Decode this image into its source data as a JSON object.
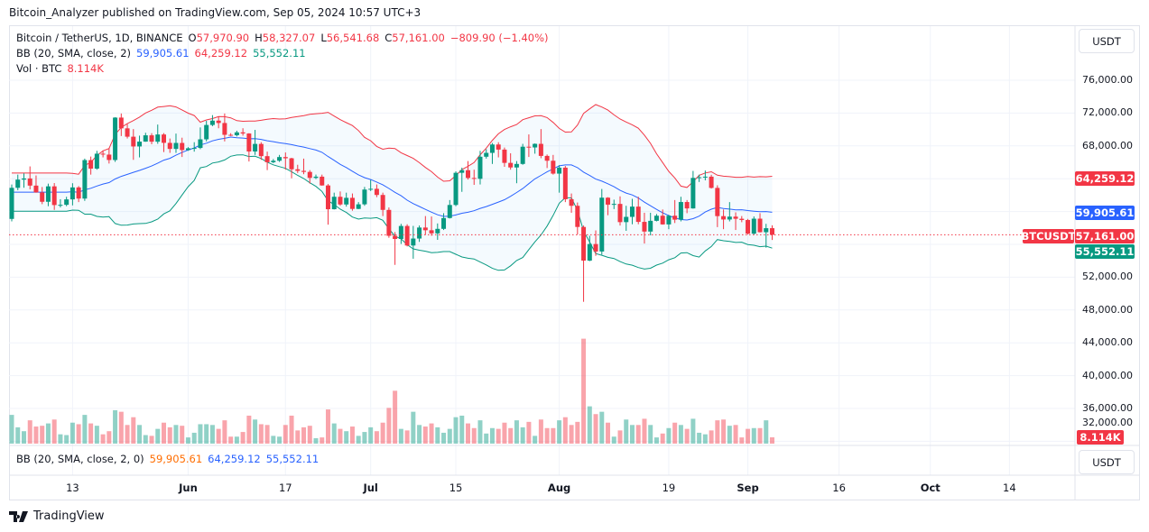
{
  "publisher_line": "Bitcoin_Analyzer published on TradingView.com, Sep 05, 2024 10:57 UTC+3",
  "legend": {
    "symbol": "Bitcoin / TetherUS, 1D, BINANCE",
    "o_label": "O",
    "o": "57,970.90",
    "h_label": "H",
    "h": "58,327.07",
    "l_label": "L",
    "l": "56,541.68",
    "c_label": "C",
    "c": "57,161.00",
    "change": "−809.90 (−1.40%)",
    "bb_label": "BB (20, SMA, close, 2)",
    "bb_basis": "59,905.61",
    "bb_upper": "64,259.12",
    "bb_lower": "55,552.11",
    "vol_label": "Vol · BTC",
    "vol": "8.114K"
  },
  "lower_pane": {
    "label": "BB (20, SMA, close, 2, 0)",
    "v1": "59,905.61",
    "v2": "64,259.12",
    "v3": "55,552.11",
    "unit": "USDT"
  },
  "price_axis": {
    "unit": "USDT",
    "symbol_tag": "BTCUSDT",
    "labels": {
      "upper": "64,259.12",
      "basis": "59,905.61",
      "last": "57,161.00",
      "lower": "55,552.11",
      "volume": "8.114K"
    }
  },
  "footer_logo": "TradingView",
  "chart_data": {
    "type": "candlestick",
    "symbol": "BTCUSDT",
    "timeframe": "1D",
    "ylim": [
      30000,
      80000
    ],
    "y_ticks": [
      "76,000.00",
      "72,000.00",
      "68,000.00",
      "52,000.00",
      "48,000.00",
      "44,000.00",
      "40,000.00",
      "36,000.00",
      "32,000.00"
    ],
    "y_tick_values": [
      76000,
      72000,
      68000,
      52000,
      48000,
      44000,
      40000,
      36000,
      32000
    ],
    "x_ticks": [
      {
        "label": "13",
        "date": "2024-05-13",
        "month": false
      },
      {
        "label": "Jun",
        "date": "2024-06-01",
        "month": true
      },
      {
        "label": "17",
        "date": "2024-06-17",
        "month": false
      },
      {
        "label": "Jul",
        "date": "2024-07-01",
        "month": true
      },
      {
        "label": "15",
        "date": "2024-07-15",
        "month": false
      },
      {
        "label": "Aug",
        "date": "2024-08-01",
        "month": true
      },
      {
        "label": "19",
        "date": "2024-08-19",
        "month": false
      },
      {
        "label": "Sep",
        "date": "2024-09-01",
        "month": true
      },
      {
        "label": "16",
        "date": "2024-09-16",
        "month": false
      },
      {
        "label": "Oct",
        "date": "2024-10-01",
        "month": true
      },
      {
        "label": "14",
        "date": "2024-10-14",
        "month": false
      }
    ],
    "indicator": {
      "name": "BB",
      "length": 20,
      "mult": 2,
      "source": "close"
    },
    "last_price": 57161.0,
    "bb_last": {
      "basis": 59905.61,
      "upper": 64259.12,
      "lower": 55552.11
    },
    "colors": {
      "up": "#089981",
      "down": "#F23645",
      "basis": "#2962FF",
      "upper": "#F23645",
      "lower": "#089981"
    },
    "columns": [
      "date",
      "open",
      "high",
      "low",
      "close",
      "volume_k_btc"
    ],
    "candles": [
      [
        "2024-05-03",
        59100,
        63300,
        58800,
        62890,
        37
      ],
      [
        "2024-05-04",
        62890,
        64500,
        62600,
        63890,
        21
      ],
      [
        "2024-05-05",
        63890,
        64650,
        62900,
        64030,
        16
      ],
      [
        "2024-05-06",
        64030,
        65500,
        62700,
        63160,
        30
      ],
      [
        "2024-05-07",
        63160,
        64400,
        62300,
        62330,
        22
      ],
      [
        "2024-05-08",
        62330,
        62990,
        60900,
        61190,
        23
      ],
      [
        "2024-05-09",
        61190,
        63400,
        60650,
        63070,
        26
      ],
      [
        "2024-05-10",
        63070,
        63470,
        60200,
        60790,
        31
      ],
      [
        "2024-05-11",
        60790,
        61500,
        60500,
        60820,
        12
      ],
      [
        "2024-05-12",
        60820,
        61800,
        60650,
        61480,
        11
      ],
      [
        "2024-05-13",
        61480,
        63450,
        60750,
        62940,
        27
      ],
      [
        "2024-05-14",
        62940,
        63100,
        61150,
        61580,
        25
      ],
      [
        "2024-05-15",
        61580,
        66450,
        61300,
        66270,
        37
      ],
      [
        "2024-05-16",
        66270,
        66700,
        64500,
        65230,
        26
      ],
      [
        "2024-05-17",
        65230,
        67400,
        65100,
        67050,
        23
      ],
      [
        "2024-05-18",
        67050,
        67450,
        66600,
        66940,
        12
      ],
      [
        "2024-05-19",
        66940,
        67700,
        65850,
        66280,
        16
      ],
      [
        "2024-05-20",
        66280,
        71500,
        66050,
        71450,
        43
      ],
      [
        "2024-05-21",
        71450,
        71950,
        69200,
        70140,
        41
      ],
      [
        "2024-05-22",
        70140,
        70650,
        68900,
        69120,
        24
      ],
      [
        "2024-05-23",
        69120,
        70050,
        66300,
        67930,
        34
      ],
      [
        "2024-05-24",
        67930,
        69250,
        66600,
        68520,
        24
      ],
      [
        "2024-05-25",
        68520,
        69600,
        68500,
        69290,
        11
      ],
      [
        "2024-05-26",
        69290,
        69550,
        68200,
        68510,
        10
      ],
      [
        "2024-05-27",
        68510,
        70600,
        68250,
        69390,
        19
      ],
      [
        "2024-05-28",
        69390,
        69560,
        67250,
        68370,
        27
      ],
      [
        "2024-05-29",
        68370,
        68900,
        67150,
        67630,
        21
      ],
      [
        "2024-05-30",
        67630,
        69500,
        67150,
        68360,
        24
      ],
      [
        "2024-05-31",
        68360,
        69000,
        66650,
        67490,
        23
      ],
      [
        "2024-06-01",
        67490,
        67850,
        67400,
        67710,
        8
      ],
      [
        "2024-06-02",
        67710,
        68450,
        67300,
        67750,
        14
      ],
      [
        "2024-06-03",
        67750,
        70250,
        67600,
        68800,
        25
      ],
      [
        "2024-06-04",
        68800,
        71050,
        68550,
        70550,
        25
      ],
      [
        "2024-06-05",
        70550,
        71750,
        70400,
        71080,
        24
      ],
      [
        "2024-06-06",
        71080,
        71600,
        70150,
        70790,
        19
      ],
      [
        "2024-06-07",
        70790,
        71950,
        68550,
        69350,
        30
      ],
      [
        "2024-06-08",
        69350,
        69550,
        69200,
        69300,
        9
      ],
      [
        "2024-06-09",
        69300,
        69850,
        69150,
        69650,
        9
      ],
      [
        "2024-06-10",
        69650,
        70150,
        69250,
        69510,
        15
      ],
      [
        "2024-06-11",
        69510,
        69550,
        66100,
        67320,
        36
      ],
      [
        "2024-06-12",
        67320,
        69950,
        66900,
        68240,
        31
      ],
      [
        "2024-06-13",
        68240,
        68450,
        66300,
        66750,
        25
      ],
      [
        "2024-06-14",
        66750,
        67300,
        65050,
        66010,
        24
      ],
      [
        "2024-06-15",
        66010,
        66400,
        65900,
        66190,
        10
      ],
      [
        "2024-06-16",
        66190,
        66900,
        66050,
        66640,
        9
      ],
      [
        "2024-06-17",
        66640,
        67200,
        65100,
        66490,
        24
      ],
      [
        "2024-06-18",
        66490,
        66550,
        64050,
        65150,
        36
      ],
      [
        "2024-06-19",
        65150,
        65700,
        64700,
        64960,
        17
      ],
      [
        "2024-06-20",
        64960,
        66450,
        64550,
        64830,
        21
      ],
      [
        "2024-06-21",
        64830,
        65050,
        63400,
        64100,
        23
      ],
      [
        "2024-06-22",
        64100,
        64500,
        63950,
        64250,
        7
      ],
      [
        "2024-06-23",
        64250,
        64500,
        63150,
        63180,
        8
      ],
      [
        "2024-06-24",
        63180,
        63350,
        58400,
        60280,
        44
      ],
      [
        "2024-06-25",
        60280,
        62300,
        60250,
        61800,
        26
      ],
      [
        "2024-06-26",
        61800,
        62450,
        60700,
        60860,
        19
      ],
      [
        "2024-06-27",
        60860,
        62300,
        60600,
        61670,
        16
      ],
      [
        "2024-06-28",
        61670,
        62200,
        60100,
        60320,
        22
      ],
      [
        "2024-06-29",
        60320,
        61150,
        60300,
        60880,
        10
      ],
      [
        "2024-06-30",
        60880,
        63000,
        60700,
        62680,
        15
      ],
      [
        "2024-07-01",
        62680,
        63850,
        62500,
        62770,
        21
      ],
      [
        "2024-07-02",
        62770,
        63300,
        61750,
        62020,
        16
      ],
      [
        "2024-07-03",
        62020,
        62300,
        59450,
        60200,
        27
      ],
      [
        "2024-07-04",
        60200,
        60500,
        56800,
        57040,
        46
      ],
      [
        "2024-07-05",
        57040,
        57500,
        53500,
        56660,
        68
      ],
      [
        "2024-07-06",
        56660,
        58500,
        56050,
        58240,
        19
      ],
      [
        "2024-07-07",
        58240,
        58450,
        55750,
        55860,
        17
      ],
      [
        "2024-07-08",
        55860,
        58250,
        54250,
        56710,
        41
      ],
      [
        "2024-07-09",
        56710,
        58300,
        56300,
        58050,
        24
      ],
      [
        "2024-07-10",
        58050,
        59450,
        57150,
        57720,
        22
      ],
      [
        "2024-07-11",
        57720,
        59400,
        57050,
        57340,
        26
      ],
      [
        "2024-07-12",
        57340,
        58550,
        56550,
        57890,
        21
      ],
      [
        "2024-07-13",
        57890,
        59800,
        57750,
        59210,
        14
      ],
      [
        "2024-07-14",
        59210,
        61400,
        59150,
        60800,
        19
      ],
      [
        "2024-07-15",
        60800,
        64900,
        60650,
        64720,
        34
      ],
      [
        "2024-07-16",
        64720,
        65350,
        62400,
        65040,
        36
      ],
      [
        "2024-07-17",
        65040,
        66150,
        63900,
        64090,
        26
      ],
      [
        "2024-07-18",
        64090,
        65100,
        63250,
        63990,
        20
      ],
      [
        "2024-07-19",
        63990,
        67400,
        63300,
        66680,
        30
      ],
      [
        "2024-07-20",
        66680,
        67600,
        66450,
        67150,
        13
      ],
      [
        "2024-07-21",
        67150,
        68350,
        65800,
        68170,
        20
      ],
      [
        "2024-07-22",
        68170,
        68450,
        66600,
        67550,
        19
      ],
      [
        "2024-07-23",
        67550,
        67800,
        65450,
        65930,
        27
      ],
      [
        "2024-07-24",
        65930,
        67100,
        65100,
        65370,
        20
      ],
      [
        "2024-07-25",
        65370,
        66150,
        63450,
        65800,
        30
      ],
      [
        "2024-07-26",
        65800,
        68250,
        65700,
        67900,
        21
      ],
      [
        "2024-07-27",
        67900,
        69400,
        66650,
        67810,
        28
      ],
      [
        "2024-07-28",
        67810,
        68300,
        67050,
        68250,
        10
      ],
      [
        "2024-07-29",
        68250,
        70050,
        66500,
        66780,
        31
      ],
      [
        "2024-07-30",
        66780,
        66950,
        65300,
        66190,
        20
      ],
      [
        "2024-07-31",
        66190,
        66900,
        64500,
        64620,
        20
      ],
      [
        "2024-08-01",
        64620,
        65650,
        62300,
        65350,
        30
      ],
      [
        "2024-08-02",
        65350,
        65550,
        61150,
        61500,
        34
      ],
      [
        "2024-08-03",
        61500,
        62200,
        59850,
        60700,
        24
      ],
      [
        "2024-08-04",
        60700,
        61100,
        57200,
        58120,
        28
      ],
      [
        "2024-08-05",
        58120,
        58300,
        49000,
        54020,
        135
      ],
      [
        "2024-08-06",
        54020,
        57050,
        53950,
        56040,
        48
      ],
      [
        "2024-08-07",
        56040,
        57700,
        54600,
        55130,
        38
      ],
      [
        "2024-08-08",
        55130,
        62750,
        54750,
        61690,
        41
      ],
      [
        "2024-08-09",
        61690,
        61750,
        59550,
        60840,
        27
      ],
      [
        "2024-08-10",
        60840,
        61450,
        60300,
        60930,
        9
      ],
      [
        "2024-08-11",
        60930,
        61850,
        58300,
        58710,
        17
      ],
      [
        "2024-08-12",
        58710,
        60700,
        57650,
        59350,
        31
      ],
      [
        "2024-08-13",
        59350,
        61550,
        58450,
        60600,
        24
      ],
      [
        "2024-08-14",
        60600,
        61800,
        58450,
        58740,
        24
      ],
      [
        "2024-08-15",
        58740,
        59850,
        56100,
        57560,
        32
      ],
      [
        "2024-08-16",
        57560,
        59850,
        57100,
        58870,
        24
      ],
      [
        "2024-08-17",
        58870,
        59700,
        58800,
        59490,
        8
      ],
      [
        "2024-08-18",
        59490,
        60250,
        58400,
        58430,
        13
      ],
      [
        "2024-08-19",
        58430,
        59600,
        57850,
        59490,
        20
      ],
      [
        "2024-08-20",
        59490,
        61400,
        58600,
        59010,
        27
      ],
      [
        "2024-08-21",
        59010,
        61800,
        58800,
        61160,
        24
      ],
      [
        "2024-08-22",
        61160,
        61400,
        59800,
        60380,
        19
      ],
      [
        "2024-08-23",
        60380,
        64950,
        60350,
        64100,
        32
      ],
      [
        "2024-08-24",
        64100,
        64500,
        63600,
        64180,
        14
      ],
      [
        "2024-08-25",
        64180,
        65000,
        63800,
        64250,
        12
      ],
      [
        "2024-08-26",
        64250,
        64480,
        62800,
        62880,
        17
      ],
      [
        "2024-08-27",
        62880,
        63200,
        58100,
        59440,
        30
      ],
      [
        "2024-08-28",
        59440,
        60250,
        57850,
        59030,
        31
      ],
      [
        "2024-08-29",
        59030,
        61150,
        58800,
        59380,
        23
      ],
      [
        "2024-08-30",
        59380,
        59900,
        57750,
        59120,
        24
      ],
      [
        "2024-08-31",
        59120,
        59450,
        58700,
        58970,
        8
      ],
      [
        "2024-09-01",
        58970,
        59100,
        57200,
        57300,
        19
      ],
      [
        "2024-09-02",
        57300,
        59400,
        57150,
        59130,
        20
      ],
      [
        "2024-09-03",
        59130,
        59800,
        57450,
        57480,
        20
      ],
      [
        "2024-09-04",
        57480,
        58500,
        55600,
        57970,
        30
      ],
      [
        "2024-09-05",
        57970.9,
        58327.07,
        56541.68,
        57161.0,
        8.114
      ]
    ]
  }
}
